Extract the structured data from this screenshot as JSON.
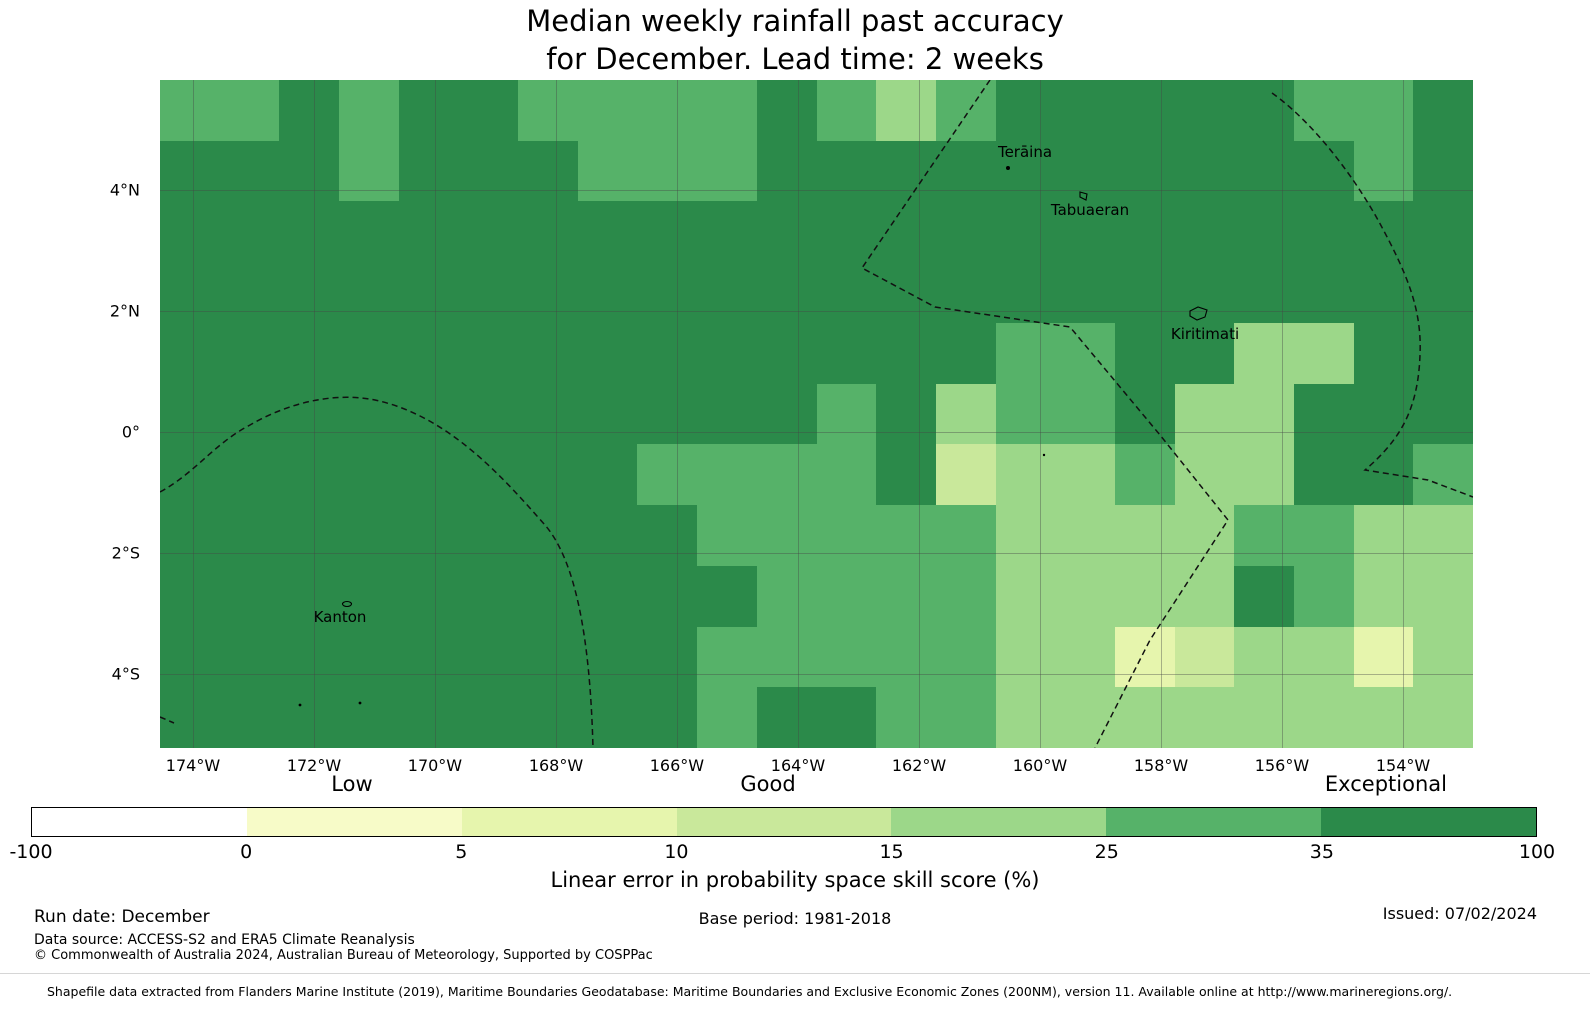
{
  "title": {
    "line1": "Median weekly rainfall past accuracy",
    "line2": "for December. Lead time: 2 weeks"
  },
  "chart_data": {
    "type": "heatmap",
    "title": "Median weekly rainfall past accuracy for December. Lead time: 2 weeks",
    "value_label": "Linear error in probability space skill score (%)",
    "bin_edges": [
      -100,
      0,
      5,
      10,
      15,
      25,
      35,
      100
    ],
    "palette": [
      "#ffffff",
      "#f7fbc8",
      "#e6f5ad",
      "#c9e89b",
      "#9cd789",
      "#56b269",
      "#2b8a4a"
    ],
    "grid": [
      "5565665555654566666556",
      "6665666555666666666656",
      "6666666666666666666666",
      "6666666666666666666666",
      "6666666666666655664466",
      "6666666666656455644666",
      "6666666655556344544665",
      "6666666665555544445544",
      "6666666666555544446544",
      "6666666665555544234424",
      "6666666665665544444444"
    ],
    "x_ticks": [
      {
        "label": "174°W",
        "pct": 2.51
      },
      {
        "label": "172°W",
        "pct": 11.73
      },
      {
        "label": "170°W",
        "pct": 20.94
      },
      {
        "label": "168°W",
        "pct": 30.16
      },
      {
        "label": "166°W",
        "pct": 39.37
      },
      {
        "label": "164°W",
        "pct": 48.59
      },
      {
        "label": "162°W",
        "pct": 57.81
      },
      {
        "label": "160°W",
        "pct": 67.02
      },
      {
        "label": "158°W",
        "pct": 76.24
      },
      {
        "label": "156°W",
        "pct": 85.45
      },
      {
        "label": "154°W",
        "pct": 94.67
      }
    ],
    "y_ticks": [
      {
        "label": "4°N",
        "pct": 16.47
      },
      {
        "label": "2°N",
        "pct": 34.58
      },
      {
        "label": "0°",
        "pct": 52.69
      },
      {
        "label": "2°S",
        "pct": 70.81
      },
      {
        "label": "4°S",
        "pct": 88.92
      }
    ],
    "skill_labels": [
      {
        "label": "Low",
        "pct": 14.62
      },
      {
        "label": "Good",
        "pct": 46.31
      },
      {
        "label": "Exceptional",
        "pct": 93.37
      }
    ],
    "islands": [
      {
        "name": "Terāina",
        "x_pct": 65.88,
        "y_pct": 10.78
      },
      {
        "name": "Tabuaeran",
        "x_pct": 70.83,
        "y_pct": 19.46
      },
      {
        "name": "Kiritimati",
        "x_pct": 79.59,
        "y_pct": 38.02
      },
      {
        "name": "Kanton",
        "x_pct": 13.71,
        "y_pct": 80.39
      }
    ],
    "colorbar": {
      "label": "Linear error in probability space skill score (%)",
      "tick_labels": [
        "-100",
        "0",
        "5",
        "10",
        "15",
        "25",
        "35",
        "100"
      ],
      "colors": [
        "#ffffff",
        "#f7fbc8",
        "#e6f5ad",
        "#c9e89b",
        "#9cd789",
        "#56b269",
        "#2b8a4a"
      ]
    }
  },
  "footer": {
    "run_date": "Run date: December",
    "base_period": "Base period: 1981-2018",
    "issued": "Issued: 07/02/2024",
    "data_source": "Data source: ACCESS-S2 and ERA5 Climate Reanalysis",
    "copyright": "© Commonwealth of Australia 2024, Australian Bureau of Meteorology, Supported by COSPPac",
    "shapefile": "Shapefile data extracted from Flanders Marine Institute (2019), Maritime Boundaries Geodatabase: Maritime Boundaries and Exclusive Economic Zones (200NM), version 11. Available online at http://www.marineregions.org/."
  }
}
